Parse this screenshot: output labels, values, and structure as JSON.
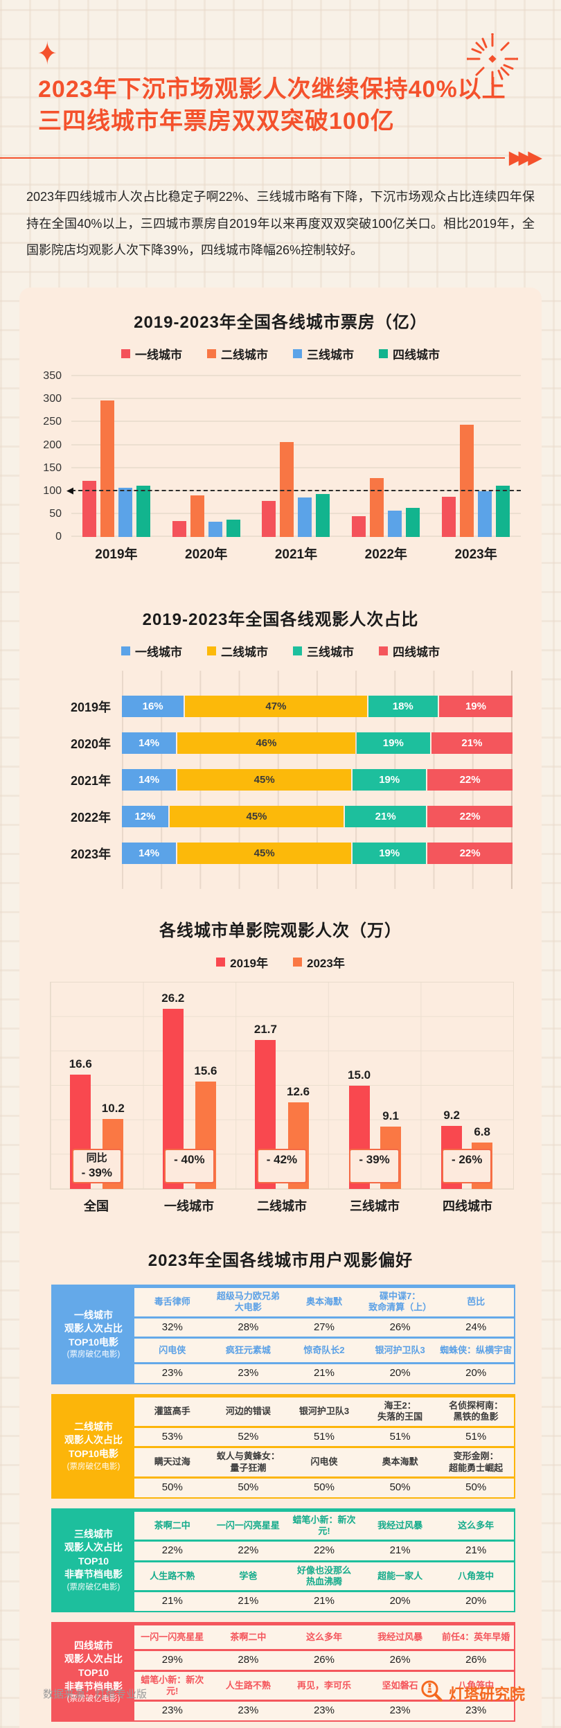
{
  "theme": {
    "accent": "#f4512c",
    "panel_bg": "#fcecdf",
    "page_bg": "#f8f1e7",
    "badge_border": "#f46a45",
    "brand_orange": "#f4681f"
  },
  "icons": {
    "sparkle": "✦",
    "arrows": "▶▶▶",
    "refline_arrow": "◀",
    "firework": "firework-burst",
    "brand_logo": "lighthouse-magnifier"
  },
  "header": {
    "title_line1": "2023年下沉市场观影人次继续保持40%以上",
    "title_line2": "三四线城市年票房双双突破100亿"
  },
  "intro": {
    "text": "2023年四线城市人次占比稳定子啊22%、三线城市略有下降，下沉市场观众占比连续四年保持在全国40%以上，三四城市票房自2019年以来再度双双突破100亿关口。相比2019年，全国影院店均观影人次下降39%，四线城市降幅26%控制较好。"
  },
  "chart_data": [
    {
      "type": "bar",
      "title": "2019-2023年全国各线城市票房（亿）",
      "categories": [
        "2019年",
        "2020年",
        "2021年",
        "2022年",
        "2023年"
      ],
      "series": [
        {
          "name": "一线城市",
          "color": "#f4525a",
          "values": [
            122,
            35,
            78,
            45,
            88
          ]
        },
        {
          "name": "二线城市",
          "color": "#f87644",
          "values": [
            297,
            90,
            207,
            129,
            244
          ]
        },
        {
          "name": "三线城市",
          "color": "#5ba3e8",
          "values": [
            107,
            34,
            86,
            57,
            100
          ]
        },
        {
          "name": "四线城市",
          "color": "#12b48e",
          "values": [
            112,
            38,
            94,
            63,
            112
          ]
        }
      ],
      "ylim": [
        0,
        350
      ],
      "ytick_step": 50,
      "refline": 100,
      "grid": true,
      "legend_position": "top"
    },
    {
      "type": "stacked-bar-horizontal",
      "title": "2019-2023年全国各线观影人次占比",
      "categories": [
        "2019年",
        "2020年",
        "2021年",
        "2022年",
        "2023年"
      ],
      "series": [
        {
          "name": "一线城市",
          "color": "#5ba3e8",
          "text": "#ffffff",
          "values": [
            16,
            14,
            14,
            12,
            14
          ]
        },
        {
          "name": "二线城市",
          "color": "#fcb90a",
          "text": "#3a3a3a",
          "values": [
            47,
            46,
            45,
            45,
            45
          ]
        },
        {
          "name": "三线城市",
          "color": "#1dbf9d",
          "text": "#ffffff",
          "values": [
            18,
            19,
            19,
            21,
            19
          ]
        },
        {
          "name": "四线城市",
          "color": "#f4565c",
          "text": "#ffffff",
          "values": [
            19,
            21,
            22,
            22,
            22
          ]
        }
      ],
      "unit": "%",
      "xlim": [
        0,
        100
      ],
      "grid": true,
      "legend_position": "top"
    },
    {
      "type": "bar",
      "title": "各线城市单影院观影人次（万）",
      "categories": [
        "全国",
        "一线城市",
        "二线城市",
        "三线城市",
        "四线城市"
      ],
      "series": [
        {
          "name": "2019年",
          "color": "#f9484f",
          "values": [
            16.6,
            26.2,
            21.7,
            15.0,
            9.2
          ]
        },
        {
          "name": "2023年",
          "color": "#fa7844",
          "values": [
            10.2,
            15.6,
            12.6,
            9.1,
            6.8
          ]
        }
      ],
      "ylim": [
        0,
        30
      ],
      "value_labels": true,
      "badges": [
        {
          "prefix": "同比",
          "value": "- 39%"
        },
        {
          "prefix": "",
          "value": "- 40%"
        },
        {
          "prefix": "",
          "value": "- 42%"
        },
        {
          "prefix": "",
          "value": "- 39%"
        },
        {
          "prefix": "",
          "value": "- 26%"
        }
      ],
      "grid": true,
      "legend_position": "top"
    }
  ],
  "preference": {
    "title": "2023年全国各线城市用户观影偏好",
    "blocks": [
      {
        "name": "一线城市",
        "color": "#64a9e9",
        "movie_color": "#5aa0e6",
        "label_lines": [
          "一线城市",
          "观影人次占比",
          "TOP10电影",
          "(票房破亿电影)"
        ],
        "rows": [
          {
            "type": "movies",
            "cells": [
              "毒舌律师",
              "超级马力欧兄弟\n大电影",
              "奥本海默",
              "碟中谍7：\n致命清算（上）",
              "芭比"
            ]
          },
          {
            "type": "pcts",
            "cells": [
              "32%",
              "28%",
              "27%",
              "26%",
              "24%"
            ]
          },
          {
            "type": "movies",
            "cells": [
              "闪电侠",
              "疯狂元素城",
              "惊奇队长2",
              "银河护卫队3",
              "蜘蛛侠：纵横宇宙"
            ]
          },
          {
            "type": "pcts",
            "cells": [
              "23%",
              "23%",
              "21%",
              "20%",
              "20%"
            ]
          }
        ]
      },
      {
        "name": "二线城市",
        "color": "#fcb50a",
        "movie_color": "#3a3a3a",
        "label_lines": [
          "二线城市",
          "观影人次占比",
          "TOP10电影",
          "(票房破亿电影)"
        ],
        "rows": [
          {
            "type": "movies",
            "cells": [
              "灌篮高手",
              "河边的错误",
              "银河护卫队3",
              "海王2：\n失落的王国",
              "名侦探柯南：\n黑铁的鱼影"
            ]
          },
          {
            "type": "pcts",
            "cells": [
              "53%",
              "52%",
              "51%",
              "51%",
              "51%"
            ]
          },
          {
            "type": "movies",
            "cells": [
              "瞒天过海",
              "蚁人与黄蜂女：\n量子狂潮",
              "闪电侠",
              "奥本海默",
              "变形金刚：\n超能勇士崛起"
            ]
          },
          {
            "type": "pcts",
            "cells": [
              "50%",
              "50%",
              "50%",
              "50%",
              "50%"
            ]
          }
        ]
      },
      {
        "name": "三线城市",
        "color": "#1dbf9d",
        "movie_color": "#14ab8b",
        "label_lines": [
          "三线城市",
          "观影人次占比",
          "TOP10",
          "非春节档电影",
          "(票房破亿电影)"
        ],
        "rows": [
          {
            "type": "movies",
            "cells": [
              "茶啊二中",
              "一闪一闪亮星星",
              "蜡笔小新：新次元!",
              "我经过风暴",
              "这么多年"
            ]
          },
          {
            "type": "pcts",
            "cells": [
              "22%",
              "22%",
              "22%",
              "21%",
              "21%"
            ]
          },
          {
            "type": "movies",
            "cells": [
              "人生路不熟",
              "学爸",
              "好像也没那么\n热血沸腾",
              "超能一家人",
              "八角笼中"
            ]
          },
          {
            "type": "pcts",
            "cells": [
              "21%",
              "21%",
              "21%",
              "20%",
              "20%"
            ]
          }
        ]
      },
      {
        "name": "四线城市",
        "color": "#f4565c",
        "movie_color": "#f4565c",
        "label_lines": [
          "四线城市",
          "观影人次占比",
          "TOP10",
          "非春节档电影",
          "(票房破亿电影)"
        ],
        "rows": [
          {
            "type": "movies",
            "cells": [
              "一闪一闪亮星星",
              "茶啊二中",
              "这么多年",
              "我经过风暴",
              "前任4：英年早婚"
            ]
          },
          {
            "type": "pcts",
            "cells": [
              "29%",
              "28%",
              "26%",
              "26%",
              "26%"
            ]
          },
          {
            "type": "movies",
            "cells": [
              "蜡笔小新：新次元!",
              "人生路不熟",
              "再见，李可乐",
              "坚如磐石",
              "八角笼中"
            ]
          },
          {
            "type": "pcts",
            "cells": [
              "23%",
              "23%",
              "23%",
              "23%",
              "23%"
            ]
          }
        ]
      }
    ]
  },
  "footer": {
    "source": "数据来源：灯塔专业版",
    "brand": "灯塔研究院"
  }
}
